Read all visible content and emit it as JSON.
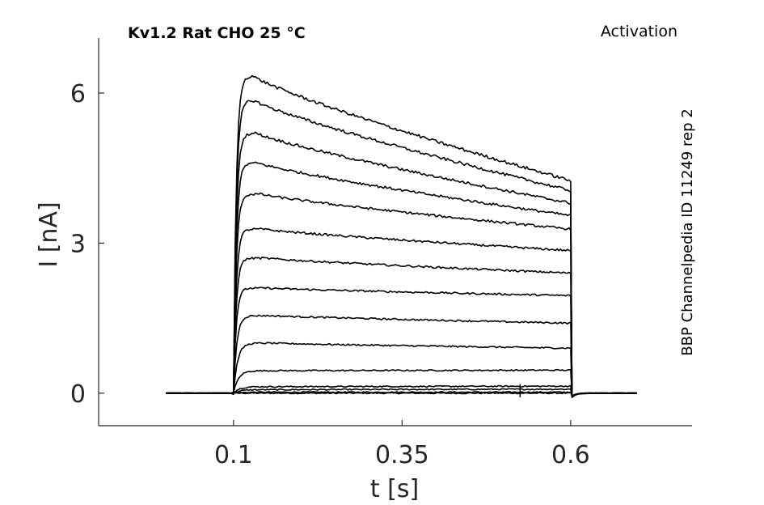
{
  "chart_data": {
    "type": "line",
    "title": "Kv1.2  Rat  CHO  25 °C",
    "protocol": "Activation",
    "side_note": "BBP Channelpedia ID 11249 rep 2",
    "xlabel": "t [s]",
    "ylabel": "I [nA]",
    "xlim": [
      -0.1,
      0.78
    ],
    "ylim": [
      -0.65,
      7.1
    ],
    "xticks": [
      0.1,
      0.35,
      0.6
    ],
    "xtick_labels": [
      "0.1",
      "0.35",
      "0.6"
    ],
    "yticks": [
      0,
      3,
      6
    ],
    "ytick_labels": [
      "0",
      "3",
      "6"
    ],
    "grid": false,
    "legend": "none",
    "pulse": {
      "start": 0.1,
      "end": 0.6,
      "trace_start": 0.0,
      "trace_end": 0.7
    },
    "series": [
      {
        "peak": 0.0,
        "end": 0.0
      },
      {
        "peak": 0.02,
        "end": 0.02
      },
      {
        "peak": 0.07,
        "end": 0.08
      },
      {
        "peak": 0.13,
        "end": 0.14
      },
      {
        "peak": 0.45,
        "end": 0.46
      },
      {
        "peak": 1.0,
        "end": 0.9
      },
      {
        "peak": 1.55,
        "end": 1.4
      },
      {
        "peak": 2.1,
        "end": 1.95
      },
      {
        "peak": 2.7,
        "end": 2.4
      },
      {
        "peak": 3.28,
        "end": 2.85
      },
      {
        "peak": 3.98,
        "end": 3.28
      },
      {
        "peak": 4.6,
        "end": 3.55
      },
      {
        "peak": 5.2,
        "end": 3.8
      },
      {
        "peak": 5.85,
        "end": 4.05
      },
      {
        "peak": 6.35,
        "end": 4.25
      }
    ]
  }
}
